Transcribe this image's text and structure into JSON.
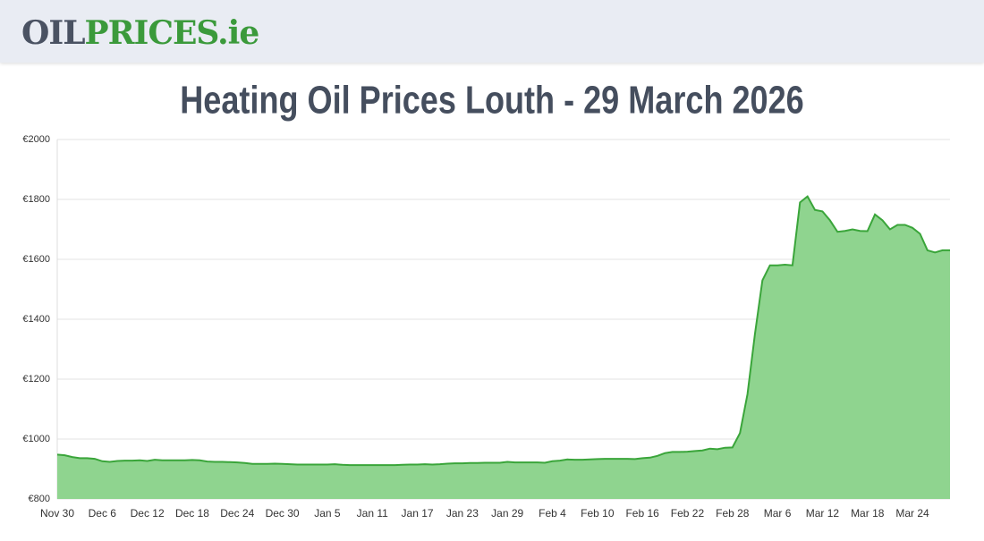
{
  "header": {
    "logo_oil": "OIL",
    "logo_prices": "PRICES.ie"
  },
  "chart_data": {
    "type": "area",
    "title": "Heating Oil Prices Louth - 29 March 2026",
    "categories": [
      "Nov 30",
      null,
      null,
      null,
      null,
      null,
      "Dec 6",
      null,
      null,
      null,
      null,
      null,
      "Dec 12",
      null,
      null,
      null,
      null,
      null,
      "Dec 18",
      null,
      null,
      null,
      null,
      null,
      "Dec 24",
      null,
      null,
      null,
      null,
      null,
      "Dec 30",
      null,
      null,
      null,
      null,
      null,
      "Jan 5",
      null,
      null,
      null,
      null,
      null,
      "Jan 11",
      null,
      null,
      null,
      null,
      null,
      "Jan 17",
      null,
      null,
      null,
      null,
      null,
      "Jan 23",
      null,
      null,
      null,
      null,
      null,
      "Jan 29",
      null,
      null,
      null,
      null,
      null,
      "Feb 4",
      null,
      null,
      null,
      null,
      null,
      "Feb 10",
      null,
      null,
      null,
      null,
      null,
      "Feb 16",
      null,
      null,
      null,
      null,
      null,
      "Feb 22",
      null,
      null,
      null,
      null,
      null,
      "Feb 28",
      null,
      null,
      null,
      null,
      null,
      "Mar 6",
      null,
      null,
      null,
      null,
      null,
      "Mar 12",
      null,
      null,
      null,
      null,
      null,
      "Mar 18",
      null,
      null,
      null,
      null,
      null,
      "Mar 24",
      null,
      null,
      null,
      null,
      null
    ],
    "values": [
      948,
      946,
      940,
      936,
      936,
      934,
      926,
      924,
      927,
      928,
      928,
      929,
      927,
      931,
      929,
      929,
      929,
      929,
      930,
      929,
      925,
      924,
      924,
      923,
      922,
      920,
      917,
      917,
      917,
      918,
      917,
      916,
      915,
      915,
      915,
      915,
      915,
      916,
      914,
      913,
      913,
      913,
      913,
      913,
      913,
      913,
      914,
      915,
      915,
      916,
      915,
      916,
      918,
      919,
      919,
      920,
      920,
      921,
      921,
      921,
      924,
      922,
      922,
      922,
      922,
      921,
      926,
      928,
      932,
      931,
      931,
      932,
      933,
      934,
      934,
      934,
      934,
      933,
      936,
      938,
      944,
      953,
      957,
      957,
      958,
      960,
      962,
      968,
      966,
      971,
      972,
      1020,
      1150,
      1350,
      1530,
      1580,
      1580,
      1582,
      1580,
      1790,
      1810,
      1765,
      1760,
      1730,
      1692,
      1695,
      1700,
      1695,
      1694,
      1750,
      1730,
      1700,
      1715,
      1715,
      1705,
      1685,
      1630,
      1623,
      1630,
      1630
    ],
    "color": "#3aa53a",
    "fill": "#8fd48f",
    "ylim": [
      800,
      2000
    ],
    "yticks": [
      {
        "value": 800,
        "label": "€800"
      },
      {
        "value": 1000,
        "label": "€1000"
      },
      {
        "value": 1200,
        "label": "€1200"
      },
      {
        "value": 1400,
        "label": "€1400"
      },
      {
        "value": 1600,
        "label": "€1600"
      },
      {
        "value": 1800,
        "label": "€1800"
      },
      {
        "value": 2000,
        "label": "€2000"
      }
    ],
    "grid": true
  }
}
